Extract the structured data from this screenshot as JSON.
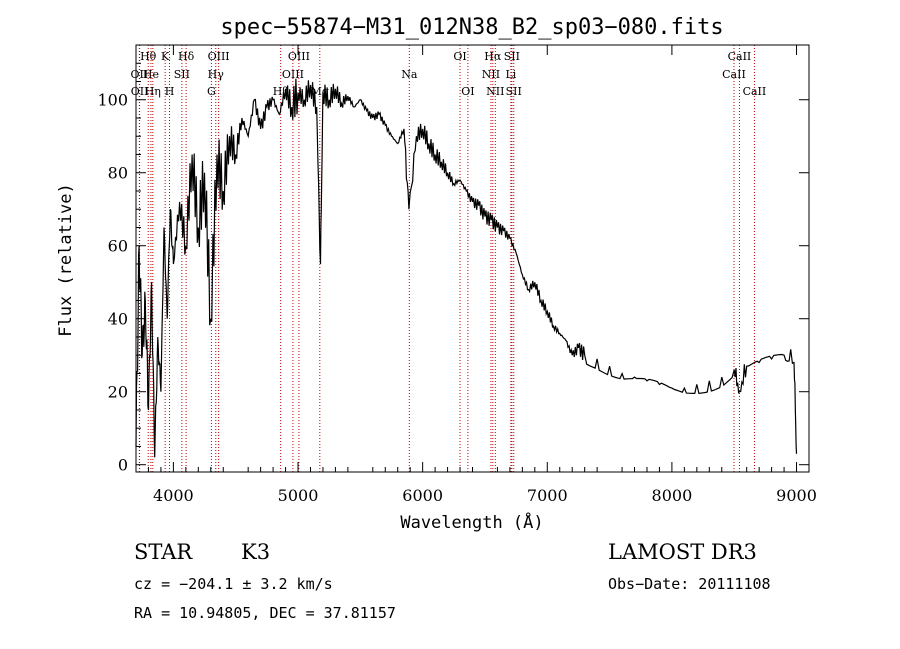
{
  "chart_data": {
    "type": "line",
    "title": "spec−55874−M31_012N38_B2_sp03−080.fits",
    "xlabel": "Wavelength (Å)",
    "ylabel": "Flux (relative)",
    "xlim": [
      3700,
      9100
    ],
    "ylim": [
      -2,
      115
    ],
    "xticks": [
      4000,
      5000,
      6000,
      7000,
      8000,
      9000
    ],
    "yticks": [
      0,
      20,
      40,
      60,
      80,
      100
    ],
    "grid": false,
    "series": [
      {
        "name": "spectrum",
        "color": "#000000",
        "x": [
          3700,
          3725,
          3750,
          3775,
          3800,
          3825,
          3850,
          3875,
          3900,
          3925,
          3950,
          3975,
          4000,
          4050,
          4100,
          4150,
          4200,
          4250,
          4300,
          4350,
          4400,
          4450,
          4500,
          4550,
          4600,
          4650,
          4700,
          4750,
          4800,
          4850,
          4900,
          4950,
          5000,
          5050,
          5100,
          5150,
          5180,
          5200,
          5250,
          5300,
          5350,
          5400,
          5450,
          5500,
          5550,
          5600,
          5650,
          5700,
          5750,
          5800,
          5850,
          5890,
          5950,
          6000,
          6050,
          6100,
          6150,
          6200,
          6250,
          6300,
          6350,
          6400,
          6450,
          6500,
          6550,
          6600,
          6650,
          6700,
          6750,
          6800,
          6850,
          6900,
          6950,
          7000,
          7050,
          7100,
          7150,
          7200,
          7250,
          7300,
          7400,
          7500,
          7600,
          7700,
          7800,
          7900,
          8000,
          8100,
          8200,
          8300,
          8400,
          8500,
          8542,
          8600,
          8700,
          8800,
          8900,
          8980,
          9000
        ],
        "y": [
          5,
          60,
          30,
          45,
          15,
          50,
          2,
          35,
          20,
          65,
          40,
          70,
          55,
          72,
          60,
          85,
          65,
          80,
          40,
          85,
          75,
          90,
          85,
          95,
          90,
          100,
          92,
          98,
          100,
          96,
          103,
          98,
          102,
          100,
          104,
          98,
          55,
          102,
          100,
          103,
          99,
          101,
          98,
          100,
          97,
          95,
          96,
          93,
          90,
          88,
          92,
          70,
          90,
          92,
          88,
          85,
          83,
          80,
          77,
          78,
          75,
          72,
          71,
          68,
          67,
          65,
          64,
          62,
          58,
          52,
          48,
          50,
          45,
          42,
          38,
          36,
          34,
          30,
          32,
          30,
          29,
          27,
          25,
          24,
          23,
          22,
          21,
          21,
          22,
          23,
          24,
          26,
          20,
          27,
          28,
          29,
          30,
          28,
          3
        ]
      }
    ],
    "lines": [
      {
        "name": "OII",
        "x": 3727,
        "row": 2
      },
      {
        "name": "OII",
        "x": 3729,
        "row": 3
      },
      {
        "name": "Hθ",
        "x": 3798,
        "row": 1
      },
      {
        "name": "He",
        "x": 3820,
        "row": 2
      },
      {
        "name": "Hη",
        "x": 3835,
        "row": 3
      },
      {
        "name": "K",
        "x": 3934,
        "row": 1
      },
      {
        "name": "H",
        "x": 3969,
        "row": 3
      },
      {
        "name": "SII",
        "x": 4068,
        "row": 2
      },
      {
        "name": "Hδ",
        "x": 4102,
        "row": 1
      },
      {
        "name": "G",
        "x": 4305,
        "row": 3
      },
      {
        "name": "Hγ",
        "x": 4340,
        "row": 2
      },
      {
        "name": "OIII",
        "x": 4363,
        "row": 1
      },
      {
        "name": "Hβ",
        "x": 4861,
        "row": 3
      },
      {
        "name": "OIII",
        "x": 4959,
        "row": 2
      },
      {
        "name": "OIII",
        "x": 5007,
        "row": 1
      },
      {
        "name": "Mg",
        "x": 5175,
        "row": 3
      },
      {
        "name": "Na",
        "x": 5893,
        "row": 2
      },
      {
        "name": "OI",
        "x": 6300,
        "row": 1
      },
      {
        "name": "OI",
        "x": 6363,
        "row": 3
      },
      {
        "name": "NII",
        "x": 6548,
        "row": 2
      },
      {
        "name": "Hα",
        "x": 6563,
        "row": 1
      },
      {
        "name": "NII",
        "x": 6583,
        "row": 3
      },
      {
        "name": "SII",
        "x": 6716,
        "row": 1
      },
      {
        "name": "Li",
        "x": 6708,
        "row": 2
      },
      {
        "name": "SII",
        "x": 6731,
        "row": 3
      },
      {
        "name": "CaII",
        "x": 8498,
        "row": 2
      },
      {
        "name": "CaII",
        "x": 8542,
        "row": 1
      },
      {
        "name": "CaII",
        "x": 8662,
        "row": 3
      }
    ]
  },
  "info": {
    "class": "STAR",
    "subclass": "K3",
    "survey": "LAMOST DR3",
    "cz": "cz = −204.1 ± 3.2 km/s",
    "obs_date": "Obs−Date: 20111108",
    "coords": "RA =  10.94805, DEC =  37.81157"
  },
  "colors": {
    "line_marker": "#c00000",
    "spectrum": "#000000"
  }
}
